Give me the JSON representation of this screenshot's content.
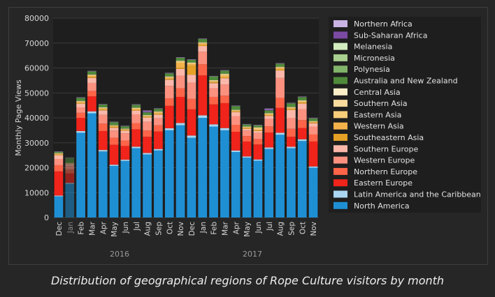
{
  "chart_data": {
    "type": "bar",
    "stacked": true,
    "title": "",
    "caption": "Distribution of geographical regions of Rope Culture visitors by month",
    "ylabel": "Monthly Page Views",
    "xlabel": "",
    "ylim": [
      0,
      80000
    ],
    "yticks": [
      0,
      10000,
      20000,
      30000,
      40000,
      50000,
      60000,
      70000,
      80000
    ],
    "grid": true,
    "legend_position": "right",
    "categories": [
      "Dec",
      "Jan",
      "Feb",
      "Mar",
      "Apr",
      "May",
      "Jun",
      "Jul",
      "Aug",
      "Sep",
      "Oct",
      "Nov",
      "Dec",
      "Jan",
      "Feb",
      "Mar",
      "Apr",
      "May",
      "Jun",
      "Jul",
      "Aug",
      "Sep",
      "Oct",
      "Nov"
    ],
    "category_faded": [
      false,
      true,
      false,
      false,
      false,
      false,
      false,
      false,
      false,
      false,
      false,
      false,
      false,
      false,
      false,
      false,
      false,
      false,
      false,
      false,
      false,
      false,
      false,
      false
    ],
    "year_labels": [
      {
        "label": "2016",
        "at_index": 5.5
      },
      {
        "label": "2017",
        "at_index": 17.5
      }
    ],
    "series": [
      {
        "name": "North America",
        "color": "#1f8fd4",
        "values": [
          8500,
          13500,
          34000,
          41800,
          26500,
          20700,
          22700,
          27800,
          25300,
          26900,
          35000,
          37000,
          32000,
          40000,
          36500,
          35000,
          26300,
          24000,
          22800,
          27500,
          33200,
          27800,
          30700,
          20000
        ]
      },
      {
        "name": "Latin America and the Caribbean",
        "color": "#a9d6f0",
        "values": [
          300,
          400,
          700,
          800,
          600,
          500,
          500,
          600,
          600,
          600,
          800,
          900,
          900,
          1000,
          900,
          900,
          600,
          500,
          500,
          600,
          800,
          600,
          700,
          500
        ]
      },
      {
        "name": "Eastern Europe",
        "color": "#f0241b",
        "values": [
          9700,
          3800,
          5300,
          6000,
          7600,
          8000,
          5500,
          7000,
          6500,
          7000,
          9000,
          10500,
          10500,
          16000,
          8000,
          10000,
          7500,
          6000,
          6000,
          6000,
          10000,
          4000,
          4500,
          10000
        ]
      },
      {
        "name": "Northern Europe",
        "color": "#fd6448",
        "values": [
          2500,
          1500,
          2000,
          2200,
          3000,
          2800,
          2200,
          2500,
          2500,
          2500,
          3000,
          3500,
          4200,
          4500,
          3000,
          3000,
          2800,
          2200,
          2200,
          2500,
          4000,
          3200,
          3200,
          2800
        ]
      },
      {
        "name": "Western Europe",
        "color": "#fc9180",
        "values": [
          2500,
          1500,
          2200,
          3200,
          3500,
          2900,
          2900,
          3500,
          3500,
          2800,
          5000,
          5000,
          6500,
          5000,
          3500,
          4500,
          3500,
          2200,
          2400,
          3000,
          8000,
          4400,
          4400,
          3200
        ]
      },
      {
        "name": "Southern Europe",
        "color": "#fbb8aa",
        "values": [
          1500,
          700,
          1500,
          2000,
          1800,
          1100,
          1000,
          1500,
          1700,
          1500,
          2500,
          2700,
          3200,
          2300,
          2000,
          2500,
          1600,
          700,
          800,
          1200,
          3000,
          3100,
          2200,
          1300
        ]
      },
      {
        "name": "Southeastern Asia",
        "color": "#e5a126",
        "values": [
          200,
          100,
          200,
          300,
          300,
          300,
          200,
          300,
          200,
          300,
          300,
          500,
          3500,
          400,
          300,
          300,
          200,
          200,
          300,
          300,
          400,
          300,
          300,
          200
        ]
      },
      {
        "name": "Western Asia",
        "color": "#f2b24a",
        "values": [
          300,
          100,
          400,
          500,
          400,
          400,
          300,
          300,
          300,
          400,
          400,
          2000,
          700,
          500,
          300,
          600,
          300,
          300,
          200,
          300,
          500,
          400,
          400,
          300
        ]
      },
      {
        "name": "Eastern Asia",
        "color": "#f8cd79",
        "values": [
          200,
          100,
          200,
          300,
          200,
          200,
          200,
          300,
          200,
          300,
          300,
          500,
          400,
          300,
          300,
          500,
          200,
          200,
          800,
          200,
          300,
          300,
          300,
          200
        ]
      },
      {
        "name": "Southern Asia",
        "color": "#f9dc9d",
        "values": [
          100,
          100,
          200,
          200,
          200,
          100,
          100,
          200,
          200,
          200,
          200,
          200,
          200,
          200,
          200,
          300,
          100,
          100,
          100,
          200,
          200,
          200,
          200,
          100
        ]
      },
      {
        "name": "Central Asia",
        "color": "#fcefc8",
        "values": [
          100,
          100,
          100,
          100,
          100,
          100,
          100,
          100,
          100,
          100,
          100,
          100,
          100,
          100,
          100,
          100,
          100,
          100,
          100,
          100,
          100,
          100,
          100,
          100
        ]
      },
      {
        "name": "Australia and New Zealand",
        "color": "#4f8a3a",
        "values": [
          400,
          2000,
          1200,
          1200,
          1100,
          1100,
          900,
          1100,
          1100,
          1000,
          1200,
          1200,
          1100,
          1300,
          1500,
          1200,
          1500,
          800,
          800,
          1100,
          1200,
          1400,
          1300,
          1000
        ]
      },
      {
        "name": "Polynesia",
        "color": "#82b36a",
        "values": [
          0,
          0,
          0,
          0,
          0,
          0,
          0,
          0,
          0,
          0,
          0,
          0,
          0,
          0,
          0,
          0,
          0,
          0,
          0,
          0,
          0,
          0,
          0,
          0
        ]
      },
      {
        "name": "Micronesia",
        "color": "#a8cf8e",
        "values": [
          0,
          0,
          0,
          0,
          0,
          0,
          0,
          0,
          0,
          0,
          0,
          0,
          0,
          0,
          0,
          0,
          0,
          0,
          0,
          0,
          0,
          0,
          0,
          0
        ]
      },
      {
        "name": "Melanesia",
        "color": "#d2ecbf",
        "values": [
          0,
          0,
          0,
          0,
          0,
          0,
          0,
          0,
          0,
          0,
          0,
          0,
          0,
          0,
          0,
          0,
          0,
          0,
          0,
          0,
          0,
          0,
          0,
          0
        ]
      },
      {
        "name": "Sub-Saharan Africa",
        "color": "#7b4aa3",
        "values": [
          100,
          100,
          100,
          100,
          100,
          100,
          100,
          100,
          500,
          100,
          100,
          100,
          100,
          100,
          100,
          100,
          100,
          100,
          100,
          500,
          100,
          100,
          100,
          100
        ]
      },
      {
        "name": "Northern Africa",
        "color": "#c9b3e2",
        "values": [
          100,
          100,
          100,
          100,
          100,
          100,
          100,
          100,
          200,
          100,
          100,
          100,
          100,
          100,
          100,
          100,
          100,
          100,
          100,
          200,
          100,
          100,
          100,
          100
        ]
      }
    ]
  }
}
